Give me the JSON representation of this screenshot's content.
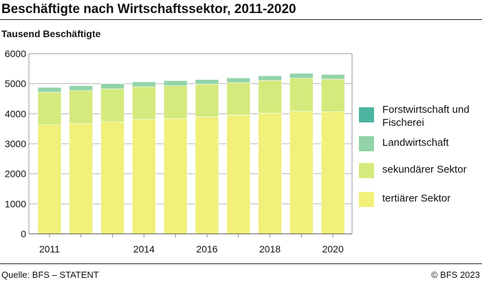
{
  "chart_data": {
    "type": "bar",
    "stacked": true,
    "title": "Beschäftigte nach Wirtschaftssektor, 2011-2020",
    "ylabel": "Tausend Beschäftigte",
    "xlabel": "",
    "ylim": [
      0,
      6000
    ],
    "yticks": [
      0,
      1000,
      2000,
      3000,
      4000,
      5000,
      6000
    ],
    "categories": [
      "2011",
      "2012",
      "2013",
      "2014",
      "2015",
      "2016",
      "2017",
      "2018",
      "2019",
      "2020"
    ],
    "xtick_labels": [
      "2011",
      "",
      "",
      "2014",
      "",
      "2016",
      "",
      "2018",
      "",
      "2020"
    ],
    "grid": true,
    "legend_position": "right",
    "series": [
      {
        "name": "tertiärer Sektor",
        "color": "#f0f07a",
        "values": [
          3625,
          3670,
          3732,
          3808,
          3840,
          3893,
          3954,
          4022,
          4084,
          4069
        ]
      },
      {
        "name": "sekundärer Sektor",
        "color": "#d4ea7c",
        "values": [
          1092,
          1100,
          1098,
          1092,
          1091,
          1092,
          1084,
          1085,
          1099,
          1084
        ]
      },
      {
        "name": "Landwirtschaft",
        "color": "#93d3a9",
        "values": [
          163,
          163,
          170,
          163,
          171,
          155,
          155,
          155,
          163,
          155
        ]
      },
      {
        "name": "Forstwirtschaft und Fischerei",
        "color": "#4bb5a0",
        "values": [
          5,
          5,
          5,
          5,
          5,
          5,
          5,
          5,
          5,
          5
        ]
      }
    ]
  },
  "legend_order": [
    3,
    2,
    1,
    0
  ],
  "legend_lines": [
    [
      "Forstwirtschaft und",
      "Fischerei"
    ],
    [
      "Landwirtschaft"
    ],
    [
      "sekundärer Sektor"
    ],
    [
      "tertiärer Sektor"
    ]
  ],
  "footer": {
    "source": "Quelle: BFS – STATENT",
    "copyright": "© BFS 2023"
  }
}
